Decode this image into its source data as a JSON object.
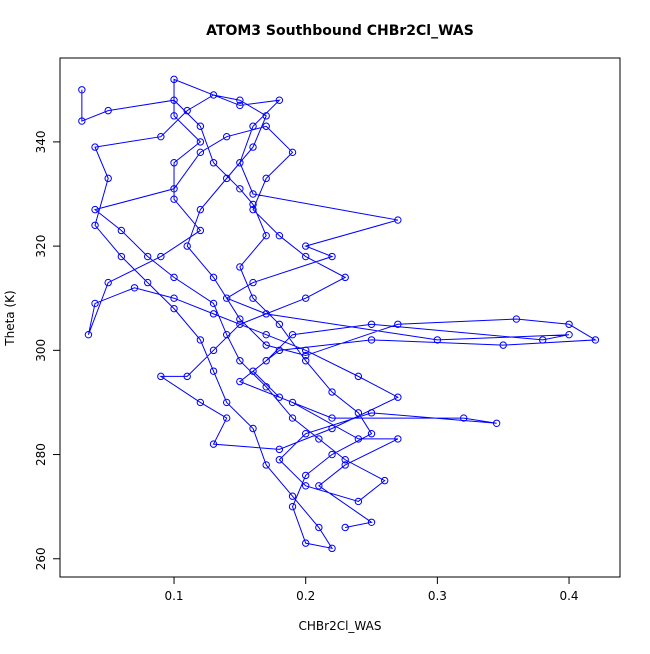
{
  "chart_data": {
    "type": "line",
    "title": "ATOM3 Southbound CHBr2Cl_WAS",
    "x_label": "CHBr2Cl_WAS",
    "y_label": "Theta (K)",
    "xlim": [
      0.0134,
      0.4387
    ],
    "ylim": [
      256.5,
      356.1
    ],
    "xticks": [
      0.1,
      0.2,
      0.3,
      0.4
    ],
    "yticks": [
      260,
      280,
      300,
      320,
      340
    ],
    "grid": false,
    "series": [
      {
        "color": "#0000ff",
        "x": [
          0.03,
          0.03,
          0.05,
          0.1,
          0.12,
          0.13,
          0.15,
          0.16,
          0.17,
          0.15,
          0.16,
          0.18,
          0.2,
          0.22,
          0.24,
          0.25,
          0.22,
          0.2,
          0.19,
          0.2,
          0.22,
          0.21,
          0.19,
          0.17,
          0.16,
          0.14,
          0.13,
          0.12,
          0.1,
          0.08,
          0.06,
          0.04,
          0.05,
          0.04,
          0.09,
          0.11,
          0.13,
          0.15,
          0.17,
          0.16,
          0.14,
          0.12,
          0.11,
          0.13,
          0.15,
          0.17,
          0.2,
          0.27,
          0.36,
          0.4,
          0.42,
          0.35,
          0.25,
          0.18,
          0.16,
          0.18,
          0.22,
          0.32,
          0.345,
          0.25,
          0.2,
          0.18,
          0.2,
          0.24,
          0.26,
          0.23,
          0.21,
          0.19,
          0.17,
          0.15,
          0.14,
          0.13,
          0.1,
          0.08,
          0.06,
          0.04,
          0.1,
          0.12,
          0.14,
          0.17,
          0.19,
          0.17,
          0.16,
          0.18,
          0.2,
          0.23,
          0.2,
          0.15,
          0.13,
          0.11,
          0.09,
          0.12,
          0.14,
          0.13,
          0.18,
          0.22,
          0.27,
          0.24,
          0.2,
          0.17,
          0.13,
          0.1,
          0.07,
          0.04,
          0.035,
          0.05,
          0.09,
          0.12,
          0.1,
          0.1,
          0.12,
          0.1,
          0.1,
          0.15,
          0.18,
          0.16,
          0.15,
          0.16,
          0.27,
          0.2,
          0.22,
          0.16,
          0.14,
          0.17,
          0.3,
          0.4,
          0.38,
          0.25,
          0.19,
          0.17,
          0.15,
          0.19,
          0.24,
          0.27,
          0.23,
          0.21,
          0.25,
          0.23
        ],
        "values": [
          350,
          344,
          346,
          348,
          343,
          336,
          331,
          328,
          322,
          316,
          310,
          305,
          298,
          292,
          288,
          284,
          280,
          276,
          270,
          263,
          262,
          266,
          272,
          278,
          285,
          290,
          296,
          302,
          308,
          313,
          318,
          324,
          333,
          339,
          341,
          346,
          349,
          348,
          345,
          339,
          333,
          327,
          320,
          314,
          306,
          301,
          299,
          305,
          306,
          305,
          302,
          301,
          302,
          300,
          296,
          291,
          287,
          287,
          286,
          288,
          284,
          279,
          274,
          271,
          275,
          279,
          283,
          287,
          293,
          298,
          303,
          309,
          314,
          318,
          323,
          327,
          331,
          338,
          341,
          343,
          338,
          333,
          327,
          322,
          318,
          314,
          310,
          305,
          300,
          295,
          295,
          290,
          287,
          282,
          281,
          285,
          291,
          295,
          300,
          303,
          307,
          310,
          312,
          309,
          303,
          313,
          318,
          323,
          329,
          336,
          340,
          345,
          352,
          347,
          348,
          343,
          336,
          330,
          325,
          320,
          318,
          313,
          310,
          307,
          302,
          303,
          302,
          305,
          303,
          298,
          294,
          290,
          283,
          283,
          278,
          274,
          267,
          266
        ]
      }
    ]
  }
}
